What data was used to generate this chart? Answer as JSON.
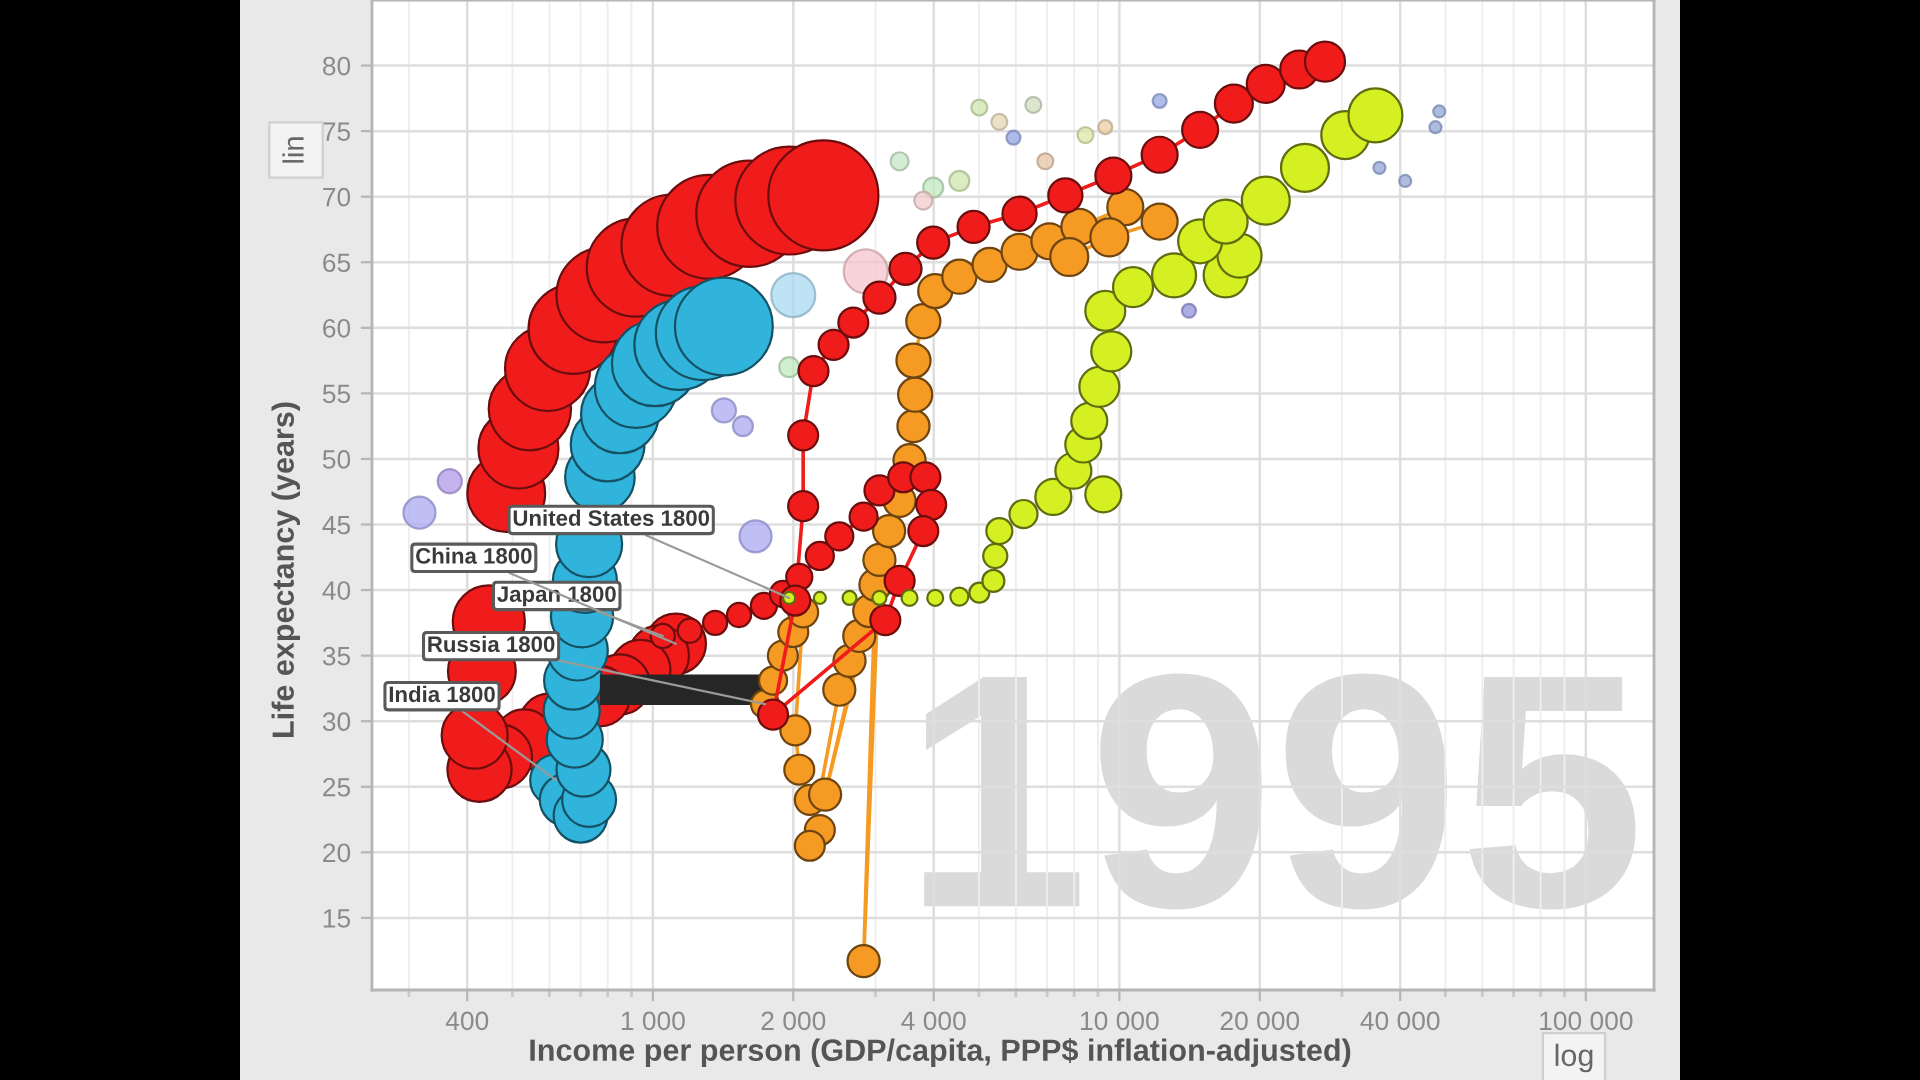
{
  "chart_data": {
    "type": "bubble",
    "xlabel": "Income per person (GDP/capita, PPP$ inflation-adjusted)",
    "ylabel": "Life expectancy (years)",
    "log": "x",
    "grid": true,
    "xlim": [
      250,
      140000
    ],
    "ylim": [
      9.5,
      85
    ],
    "xticks": [
      400,
      {
        "value": 1000,
        "label": "1 000"
      },
      {
        "value": 2000,
        "label": "2 000"
      },
      {
        "value": 4000,
        "label": "4 000"
      },
      {
        "value": 10000,
        "label": "10 000"
      },
      {
        "value": 20000,
        "label": "20 000"
      },
      {
        "value": 40000,
        "label": "40 000"
      },
      {
        "value": 100000,
        "label": "100 000"
      }
    ],
    "yticks": [
      15,
      20,
      25,
      30,
      35,
      40,
      45,
      50,
      55,
      60,
      65,
      70,
      75,
      80
    ],
    "series": [
      {
        "x": [
          316,
          367,
          1660,
          1420,
          1560,
          2000,
          2860,
          1960,
          3990,
          4540,
          5010,
          6540,
          5530,
          5930,
          9330,
          12200,
          8460,
          6940,
          3380,
          3800,
          14100,
          36100,
          41000,
          48500,
          47600
        ],
        "values": [
          45.9,
          48.3,
          44.1,
          53.7,
          52.5,
          62.5,
          64.3,
          57.0,
          70.7,
          71.2,
          76.8,
          77.0,
          75.7,
          74.5,
          75.3,
          77.3,
          74.7,
          72.7,
          72.7,
          69.7,
          61.3,
          72.2,
          71.2,
          76.5,
          75.3
        ],
        "sizes": [
          0.085,
          0.048,
          0.085,
          0.048,
          0.033,
          0.16,
          0.16,
          0.033,
          0.033,
          0.033,
          0.021,
          0.021,
          0.021,
          0.016,
          0.016,
          0.016,
          0.021,
          0.021,
          0.027,
          0.027,
          0.016,
          0.012,
          0.012,
          0.012,
          0.012
        ],
        "colors": [
          "#a9a9f2",
          "#b09ae6",
          "#a9a9f2",
          "#a9a9f2",
          "#a9a9f2",
          "#a8daf2",
          "#f5c4cc",
          "#bfe9bf",
          "#bfe9bf",
          "#cfe6ad",
          "#cfe6ad",
          "#cfdcbf",
          "#e6d6b4",
          "#93a6e2",
          "#eccda6",
          "#93a6e2",
          "#dde5a6",
          "#e6c6a6",
          "#c6e6c6",
          "#f2cccc",
          "#9393dc",
          "#93a6d6",
          "#93a6d6",
          "#93a6d6",
          "#93a6d6"
        ]
      },
      {
        "color": "#f01c1c",
        "x": [
          1120,
          1030,
          940,
          850,
          770,
          600,
          530,
          470,
          425,
          415,
          430,
          445,
          485,
          515,
          545,
          595,
          675,
          785,
          920,
          1100,
          1320,
          1610,
          1960,
          2320
        ],
        "values": [
          35.9,
          35.0,
          33.9,
          32.8,
          31.9,
          29.8,
          28.6,
          27.3,
          26.3,
          28.9,
          33.8,
          37.6,
          47.4,
          50.8,
          53.8,
          56.9,
          59.9,
          62.5,
          64.6,
          66.3,
          67.7,
          68.7,
          69.7,
          70.1
        ],
        "sizes": [
          0.3,
          0.3,
          0.3,
          0.3,
          0.3,
          0.3,
          0.3,
          0.34,
          0.34,
          0.36,
          0.38,
          0.43,
          0.5,
          0.53,
          0.56,
          0.6,
          0.66,
          0.74,
          0.8,
          0.85,
          0.89,
          0.93,
          0.96,
          1
        ]
      },
      {
        "color": "#30b4dc",
        "x": [
          620,
          650,
          700,
          730,
          710,
          680,
          670,
          675,
          690,
          705,
          715,
          730,
          770,
          800,
          850,
          920,
          1010,
          1140,
          1280,
          1420
        ],
        "values": [
          25.5,
          24.0,
          22.8,
          24.0,
          26.3,
          28.6,
          30.8,
          33.1,
          35.4,
          38.0,
          40.7,
          43.5,
          48.6,
          51.1,
          53.4,
          55.5,
          57.3,
          58.7,
          59.6,
          60.1
        ],
        "sizes": [
          0.22,
          0.22,
          0.24,
          0.24,
          0.24,
          0.26,
          0.26,
          0.28,
          0.3,
          0.32,
          0.34,
          0.36,
          0.4,
          0.45,
          0.5,
          0.56,
          0.61,
          0.67,
          0.73,
          0.79
        ]
      },
      {
        "type": "line",
        "color": "#262626",
        "x": [
          770,
          1780
        ],
        "values": [
          32.4,
          32.4
        ]
      },
      {
        "type": "line",
        "color": "#f59a23",
        "line_style": "solid",
        "x": [
          1740,
          1810,
          1900,
          2000,
          2100,
          2020,
          2060,
          2170,
          2280,
          2170,
          2510,
          2640,
          2770,
          2910,
          3000,
          2830,
          3060,
          2340,
          3210,
          3380,
          3550,
          3620,
          3650,
          3620,
          3800,
          4030,
          4540,
          5270,
          6110,
          7080,
          8210,
          10300,
          12200,
          9520,
          7810
        ],
        "values": [
          31.3,
          33.1,
          35.0,
          36.8,
          38.3,
          29.3,
          26.3,
          24.0,
          21.7,
          20.5,
          32.4,
          34.6,
          36.5,
          38.4,
          40.4,
          11.7,
          42.3,
          24.4,
          44.5,
          46.8,
          49.9,
          52.5,
          54.9,
          57.5,
          60.5,
          62.8,
          63.9,
          64.8,
          65.8,
          66.6,
          67.7,
          69.2,
          68.1,
          66.9,
          65.4
        ]
      },
      {
        "color": "#f59a23",
        "x": [
          1740,
          1810,
          1900,
          2000,
          2100,
          2020,
          2060,
          2170,
          2280,
          2170,
          2510,
          2640,
          2770,
          2910,
          3000,
          2830,
          3060,
          2340,
          3210,
          3380,
          3550,
          3620,
          3650,
          3620,
          3800,
          4030,
          4540,
          5270,
          6110,
          7080,
          8210,
          10300,
          12200,
          9520,
          7810
        ],
        "values": [
          31.3,
          33.1,
          35.0,
          36.8,
          38.3,
          29.3,
          26.3,
          24.0,
          21.7,
          20.5,
          32.4,
          34.6,
          36.5,
          38.4,
          40.4,
          11.7,
          42.3,
          24.4,
          44.5,
          46.8,
          49.9,
          52.5,
          54.9,
          57.5,
          60.5,
          62.8,
          63.9,
          64.8,
          65.8,
          66.6,
          67.7,
          69.2,
          68.1,
          66.9,
          65.4
        ],
        "sizes": [
          0.065,
          0.065,
          0.074,
          0.074,
          0.074,
          0.074,
          0.074,
          0.074,
          0.074,
          0.074,
          0.085,
          0.085,
          0.085,
          0.085,
          0.085,
          0.085,
          0.085,
          0.085,
          0.085,
          0.085,
          0.085,
          0.085,
          0.096,
          0.096,
          0.096,
          0.096,
          0.096,
          0.096,
          0.107,
          0.107,
          0.107,
          0.107,
          0.107,
          0.119,
          0.119
        ]
      },
      {
        "type": "line",
        "color": "#f01c1c",
        "line_style": "solid",
        "x": [
          1050,
          1200,
          1360,
          1530,
          1730,
          1900,
          2060,
          2280,
          2510,
          2830,
          3060,
          3440,
          3840,
          3950,
          3800,
          3380,
          3150,
          1810,
          2020,
          2100,
          2100,
          2210,
          2440,
          2690,
          3060,
          3480,
          3990,
          4870,
          6110,
          7660,
          9710,
          12200,
          14900,
          17600,
          20600,
          24300,
          27600
        ],
        "values": [
          36.5,
          36.9,
          37.5,
          38.1,
          38.8,
          39.7,
          41.0,
          42.6,
          44.1,
          45.6,
          47.6,
          48.6,
          48.6,
          46.5,
          44.5,
          40.7,
          37.7,
          30.5,
          39.2,
          46.4,
          51.8,
          56.7,
          58.7,
          60.4,
          62.3,
          64.5,
          66.5,
          67.7,
          68.7,
          70.1,
          71.6,
          73.2,
          75.1,
          77.1,
          78.6,
          79.7,
          80.3
        ]
      },
      {
        "color": "#f01c1c",
        "x": [
          1050,
          1200,
          1360,
          1530,
          1730,
          1900,
          2060,
          2280,
          2510,
          2830,
          3060,
          3440,
          3840,
          3950,
          3800,
          3380,
          3150,
          1810,
          2020,
          2100,
          2100,
          2210,
          2440,
          2690,
          3060,
          3480,
          3990,
          4870,
          6110,
          7660,
          9710,
          12200,
          14900,
          17600,
          20600,
          24300,
          27600
        ],
        "values": [
          36.5,
          36.9,
          37.5,
          38.1,
          38.8,
          39.7,
          41.0,
          42.6,
          44.1,
          45.6,
          47.6,
          48.6,
          48.6,
          46.5,
          44.5,
          40.7,
          37.7,
          30.5,
          39.2,
          46.4,
          51.8,
          56.7,
          58.7,
          60.4,
          62.3,
          64.5,
          66.5,
          67.7,
          68.7,
          70.1,
          71.6,
          73.2,
          75.1,
          77.1,
          78.6,
          79.7,
          80.3
        ],
        "sizes": [
          0.048,
          0.048,
          0.048,
          0.048,
          0.056,
          0.056,
          0.056,
          0.065,
          0.065,
          0.065,
          0.074,
          0.074,
          0.074,
          0.074,
          0.074,
          0.074,
          0.074,
          0.074,
          0.074,
          0.074,
          0.074,
          0.074,
          0.074,
          0.074,
          0.085,
          0.085,
          0.085,
          0.085,
          0.096,
          0.096,
          0.107,
          0.107,
          0.107,
          0.119,
          0.119,
          0.119,
          0.132
        ]
      },
      {
        "color": "#d4f022",
        "x": [
          1960,
          2280,
          2640,
          3060,
          3550,
          4030,
          4540,
          5010,
          5370,
          5420,
          5530,
          6230,
          7220,
          7970,
          8370,
          9240,
          8620,
          9060,
          9610,
          9330,
          10700,
          13100,
          16900,
          18100,
          14900,
          16900,
          20600,
          25000,
          30500,
          35400
        ],
        "values": [
          39.4,
          39.4,
          39.4,
          39.4,
          39.4,
          39.4,
          39.5,
          39.8,
          40.7,
          42.6,
          44.5,
          45.8,
          47.1,
          49.1,
          51.1,
          47.3,
          52.9,
          55.5,
          58.2,
          61.3,
          63.1,
          64.0,
          64.0,
          65.5,
          66.6,
          68.1,
          69.7,
          72.2,
          74.7,
          76.2
        ],
        "sizes": [
          0.012,
          0.012,
          0.016,
          0.016,
          0.021,
          0.021,
          0.027,
          0.033,
          0.04,
          0.048,
          0.056,
          0.065,
          0.107,
          0.107,
          0.107,
          0.107,
          0.107,
          0.132,
          0.132,
          0.132,
          0.132,
          0.16,
          0.16,
          0.16,
          0.16,
          0.16,
          0.19,
          0.19,
          0.19,
          0.24
        ]
      }
    ],
    "annotations": [
      {
        "text": "United States 1800",
        "x": 1960,
        "y": 39.4
      },
      {
        "text": "Japan 1800",
        "x": 1050,
        "y": 36.5
      },
      {
        "text": "China 1800",
        "x": 1120,
        "y": 35.9
      },
      {
        "text": "Russia 1800",
        "x": 1740,
        "y": 31.3
      },
      {
        "text": "India 1800",
        "x": 620,
        "y": 25.5
      },
      "1995",
      "lin",
      "log"
    ]
  }
}
